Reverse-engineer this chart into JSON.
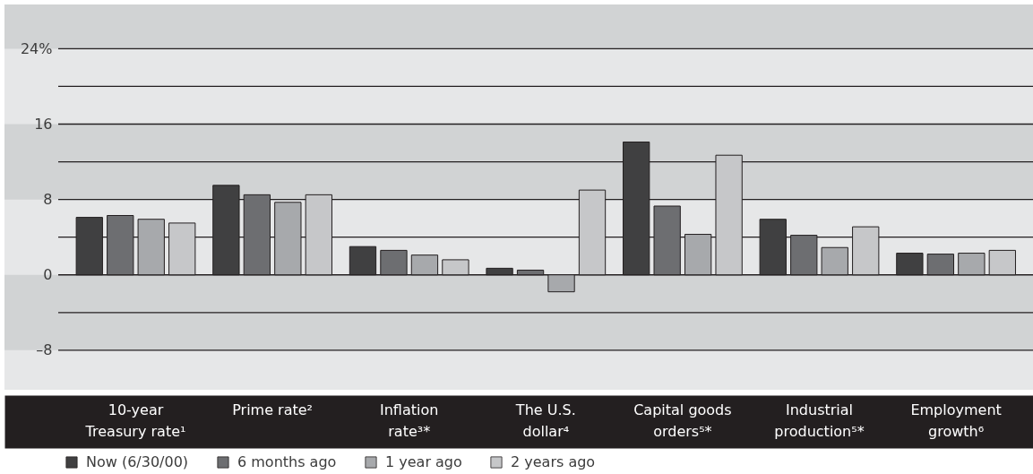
{
  "chart_data": {
    "type": "bar",
    "categories": [
      "10-year Treasury rate¹",
      "Prime rate²",
      "Inflation rate³*",
      "The U.S. dollar⁴",
      "Capital goods orders⁵*",
      "Industrial production⁵*",
      "Employment growth⁶"
    ],
    "series": [
      {
        "name": "Now (6/30/00)",
        "color": "#404041",
        "values": [
          6.1,
          9.5,
          3.0,
          0.7,
          14.1,
          5.9,
          2.3
        ]
      },
      {
        "name": "6 months ago",
        "color": "#6d6e71",
        "values": [
          6.3,
          8.5,
          2.6,
          0.5,
          7.3,
          4.2,
          2.2
        ]
      },
      {
        "name": "1 year ago",
        "color": "#a7a9ac",
        "values": [
          5.9,
          7.7,
          2.1,
          -1.8,
          4.3,
          2.9,
          2.3
        ]
      },
      {
        "name": "2 years ago",
        "color": "#c6c7c9",
        "values": [
          5.5,
          8.5,
          1.6,
          9.0,
          12.7,
          5.1,
          2.6
        ]
      }
    ],
    "ylim": [
      -12.2,
      28.7
    ],
    "yticks": [
      {
        "value": -8,
        "label": "–8"
      },
      {
        "value": -4,
        "label": null
      },
      0,
      {
        "value": 4,
        "label": null
      },
      8,
      {
        "value": 12,
        "label": null
      },
      16,
      {
        "value": 20,
        "label": null
      },
      {
        "value": 24,
        "label": "24%"
      }
    ],
    "bands": [
      {
        "axis": "y",
        "from": -12.2,
        "to": -8,
        "color": "#e6e7e8"
      },
      {
        "axis": "y",
        "from": 0,
        "to": 8,
        "color": "#e6e7e8"
      },
      {
        "axis": "y",
        "from": 16,
        "to": 24,
        "color": "#e6e7e8"
      }
    ],
    "grid": "y",
    "legend": "bottom left"
  }
}
